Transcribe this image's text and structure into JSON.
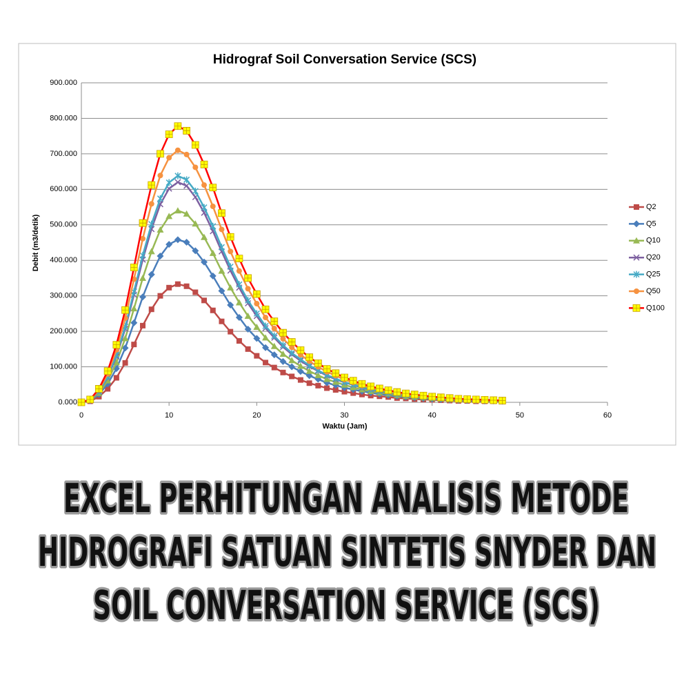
{
  "chart_data": {
    "type": "line",
    "title": "Hidrograf Soil Conversation Service (SCS)",
    "x_label": "Waktu (Jam)",
    "y_label": "Debit (m3/detik)",
    "x": [
      0,
      1,
      2,
      3,
      4,
      5,
      6,
      7,
      8,
      9,
      10,
      11,
      12,
      13,
      14,
      15,
      16,
      17,
      18,
      19,
      20,
      21,
      22,
      23,
      24,
      25,
      26,
      27,
      28,
      29,
      30,
      31,
      32,
      33,
      34,
      35,
      36,
      37,
      38,
      39,
      40,
      41,
      42,
      43,
      44,
      45,
      46,
      47,
      48
    ],
    "xlim": [
      0,
      60
    ],
    "xticks": [
      0,
      10,
      20,
      30,
      40,
      50,
      60
    ],
    "ylim": [
      0,
      900
    ],
    "yticks": [
      {
        "value": 0,
        "label": "0.000"
      },
      {
        "value": 100,
        "label": "100.000"
      },
      {
        "value": 200,
        "label": "200.000"
      },
      {
        "value": 300,
        "label": "300.000"
      },
      {
        "value": 400,
        "label": "400.000"
      },
      {
        "value": 500,
        "label": "500.000"
      },
      {
        "value": 600,
        "label": "600.000"
      },
      {
        "value": 700,
        "label": "700.000"
      },
      {
        "value": 800,
        "label": "800.000"
      },
      {
        "value": 900,
        "label": "900.000"
      }
    ],
    "grid": true,
    "legend": "right",
    "series": [
      {
        "name": "Q2",
        "color": "#be4b48",
        "marker": "square",
        "marker_color": "#be4b48",
        "values": [
          0,
          3,
          16,
          38,
          69,
          111,
          163,
          216,
          262,
          300,
          323,
          333,
          327,
          310,
          287,
          259,
          228,
          199,
          173,
          150,
          131,
          112,
          98,
          84,
          73,
          63,
          54,
          47,
          40,
          35,
          30,
          26,
          22,
          19,
          17,
          15,
          12,
          11,
          9,
          8,
          7,
          6,
          5,
          4,
          4,
          3,
          3,
          3,
          2
        ]
      },
      {
        "name": "Q5",
        "color": "#4a7ebb",
        "marker": "diamond",
        "marker_color": "#4a7ebb",
        "values": [
          0,
          5,
          22,
          52,
          95,
          153,
          224,
          297,
          360,
          412,
          445,
          458,
          451,
          427,
          395,
          356,
          314,
          274,
          239,
          206,
          180,
          154,
          134,
          115,
          100,
          87,
          75,
          65,
          55,
          48,
          41,
          36,
          31,
          27,
          23,
          20,
          17,
          15,
          13,
          11,
          9,
          8,
          7,
          6,
          5,
          5,
          4,
          4,
          3
        ]
      },
      {
        "name": "Q10",
        "color": "#98b954",
        "marker": "triangle",
        "marker_color": "#98b954",
        "values": [
          0,
          6,
          26,
          61,
          112,
          180,
          264,
          350,
          425,
          486,
          524,
          540,
          531,
          503,
          465,
          420,
          370,
          323,
          281,
          243,
          212,
          182,
          158,
          136,
          118,
          102,
          88,
          76,
          65,
          57,
          49,
          42,
          36,
          31,
          27,
          24,
          20,
          17,
          15,
          13,
          11,
          10,
          8,
          7,
          6,
          6,
          5,
          4,
          3
        ]
      },
      {
        "name": "Q20",
        "color": "#7d60a0",
        "marker": "cross",
        "marker_color": "#7d60a0",
        "values": [
          0,
          6,
          30,
          70,
          129,
          207,
          303,
          402,
          488,
          558,
          602,
          620,
          610,
          578,
          534,
          482,
          425,
          371,
          323,
          279,
          243,
          209,
          182,
          156,
          135,
          117,
          101,
          88,
          75,
          65,
          56,
          49,
          41,
          36,
          31,
          27,
          23,
          20,
          18,
          15,
          13,
          11,
          10,
          8,
          7,
          6,
          6,
          5,
          4
        ]
      },
      {
        "name": "Q25",
        "color": "#46aac5",
        "marker": "star",
        "marker_color": "#46aac5",
        "values": [
          0,
          7,
          31,
          72,
          133,
          213,
          312,
          414,
          502,
          574,
          619,
          638,
          627,
          595,
          549,
          496,
          437,
          382,
          332,
          287,
          250,
          215,
          187,
          161,
          139,
          121,
          104,
          90,
          77,
          67,
          57,
          50,
          43,
          37,
          32,
          28,
          24,
          21,
          18,
          16,
          13,
          11,
          10,
          8,
          7,
          7,
          6,
          5,
          4
        ]
      },
      {
        "name": "Q50",
        "color": "#f69240",
        "marker": "circle",
        "marker_color": "#f69240",
        "values": [
          0,
          7,
          35,
          80,
          148,
          237,
          347,
          461,
          559,
          639,
          689,
          710,
          698,
          662,
          612,
          552,
          487,
          425,
          370,
          320,
          278,
          239,
          208,
          179,
          155,
          134,
          116,
          100,
          86,
          75,
          64,
          56,
          47,
          41,
          36,
          31,
          26,
          23,
          20,
          17,
          15,
          13,
          11,
          9,
          8,
          7,
          6,
          5,
          5
        ]
      },
      {
        "name": "Q100",
        "color": "#ff0000",
        "marker": "plus-square",
        "marker_color": "#ffff00",
        "values": [
          0,
          8,
          38,
          88,
          162,
          260,
          380,
          505,
          612,
          700,
          755,
          778,
          765,
          725,
          670,
          605,
          533,
          466,
          405,
          350,
          305,
          262,
          228,
          196,
          170,
          147,
          127,
          110,
          94,
          82,
          70,
          61,
          52,
          45,
          39,
          34,
          29,
          25,
          22,
          19,
          16,
          14,
          12,
          10,
          9,
          8,
          7,
          6,
          5
        ]
      }
    ]
  },
  "headline": [
    "EXCEL PERHITUNGAN ANALISIS METODE",
    "HIDROGRAFI SATUAN SINTETIS SNYDER DAN",
    "SOIL CONVERSATION SERVICE (SCS)"
  ]
}
